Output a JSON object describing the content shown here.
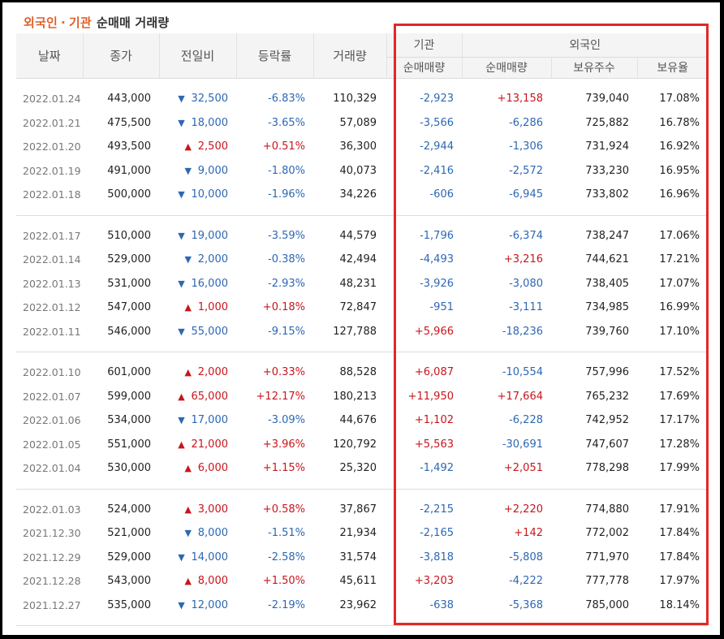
{
  "title": {
    "part1": "외국인",
    "separator": "·",
    "part2": "기관",
    "rest": "순매매 거래량"
  },
  "headers": {
    "date": "날짜",
    "close": "종가",
    "change": "전일비",
    "rate": "등락률",
    "volume": "거래량",
    "institution": "기관",
    "foreign": "외국인",
    "inst_net": "순매매량",
    "foreign_net": "순매매량",
    "foreign_shares": "보유주수",
    "foreign_ratio": "보유율"
  },
  "colors": {
    "up": "#c8151d",
    "down": "#2d67b4",
    "highlight_box": "#e32727",
    "title_accent": "#e0602a"
  },
  "groups": [
    [
      {
        "date": "2022.01.24",
        "close": "443,000",
        "dir": "down",
        "change": "32,500",
        "rate": "-6.83%",
        "volume": "110,329",
        "inst": "-2,923",
        "foreign": "+13,158",
        "shares": "739,040",
        "ratio": "17.08%"
      },
      {
        "date": "2022.01.21",
        "close": "475,500",
        "dir": "down",
        "change": "18,000",
        "rate": "-3.65%",
        "volume": "57,089",
        "inst": "-3,566",
        "foreign": "-6,286",
        "shares": "725,882",
        "ratio": "16.78%"
      },
      {
        "date": "2022.01.20",
        "close": "493,500",
        "dir": "up",
        "change": "2,500",
        "rate": "+0.51%",
        "volume": "36,300",
        "inst": "-2,944",
        "foreign": "-1,306",
        "shares": "731,924",
        "ratio": "16.92%"
      },
      {
        "date": "2022.01.19",
        "close": "491,000",
        "dir": "down",
        "change": "9,000",
        "rate": "-1.80%",
        "volume": "40,073",
        "inst": "-2,416",
        "foreign": "-2,572",
        "shares": "733,230",
        "ratio": "16.95%"
      },
      {
        "date": "2022.01.18",
        "close": "500,000",
        "dir": "down",
        "change": "10,000",
        "rate": "-1.96%",
        "volume": "34,226",
        "inst": "-606",
        "foreign": "-6,945",
        "shares": "733,802",
        "ratio": "16.96%"
      }
    ],
    [
      {
        "date": "2022.01.17",
        "close": "510,000",
        "dir": "down",
        "change": "19,000",
        "rate": "-3.59%",
        "volume": "44,579",
        "inst": "-1,796",
        "foreign": "-6,374",
        "shares": "738,247",
        "ratio": "17.06%"
      },
      {
        "date": "2022.01.14",
        "close": "529,000",
        "dir": "down",
        "change": "2,000",
        "rate": "-0.38%",
        "volume": "42,494",
        "inst": "-4,493",
        "foreign": "+3,216",
        "shares": "744,621",
        "ratio": "17.21%"
      },
      {
        "date": "2022.01.13",
        "close": "531,000",
        "dir": "down",
        "change": "16,000",
        "rate": "-2.93%",
        "volume": "48,231",
        "inst": "-3,926",
        "foreign": "-3,080",
        "shares": "738,405",
        "ratio": "17.07%"
      },
      {
        "date": "2022.01.12",
        "close": "547,000",
        "dir": "up",
        "change": "1,000",
        "rate": "+0.18%",
        "volume": "72,847",
        "inst": "-951",
        "foreign": "-3,111",
        "shares": "734,985",
        "ratio": "16.99%"
      },
      {
        "date": "2022.01.11",
        "close": "546,000",
        "dir": "down",
        "change": "55,000",
        "rate": "-9.15%",
        "volume": "127,788",
        "inst": "+5,966",
        "foreign": "-18,236",
        "shares": "739,760",
        "ratio": "17.10%"
      }
    ],
    [
      {
        "date": "2022.01.10",
        "close": "601,000",
        "dir": "up",
        "change": "2,000",
        "rate": "+0.33%",
        "volume": "88,528",
        "inst": "+6,087",
        "foreign": "-10,554",
        "shares": "757,996",
        "ratio": "17.52%"
      },
      {
        "date": "2022.01.07",
        "close": "599,000",
        "dir": "up",
        "change": "65,000",
        "rate": "+12.17%",
        "volume": "180,213",
        "inst": "+11,950",
        "foreign": "+17,664",
        "shares": "765,232",
        "ratio": "17.69%"
      },
      {
        "date": "2022.01.06",
        "close": "534,000",
        "dir": "down",
        "change": "17,000",
        "rate": "-3.09%",
        "volume": "44,676",
        "inst": "+1,102",
        "foreign": "-6,228",
        "shares": "742,952",
        "ratio": "17.17%"
      },
      {
        "date": "2022.01.05",
        "close": "551,000",
        "dir": "up",
        "change": "21,000",
        "rate": "+3.96%",
        "volume": "120,792",
        "inst": "+5,563",
        "foreign": "-30,691",
        "shares": "747,607",
        "ratio": "17.28%"
      },
      {
        "date": "2022.01.04",
        "close": "530,000",
        "dir": "up",
        "change": "6,000",
        "rate": "+1.15%",
        "volume": "25,320",
        "inst": "-1,492",
        "foreign": "+2,051",
        "shares": "778,298",
        "ratio": "17.99%"
      }
    ],
    [
      {
        "date": "2022.01.03",
        "close": "524,000",
        "dir": "up",
        "change": "3,000",
        "rate": "+0.58%",
        "volume": "37,867",
        "inst": "-2,215",
        "foreign": "+2,220",
        "shares": "774,880",
        "ratio": "17.91%"
      },
      {
        "date": "2021.12.30",
        "close": "521,000",
        "dir": "down",
        "change": "8,000",
        "rate": "-1.51%",
        "volume": "21,934",
        "inst": "-2,165",
        "foreign": "+142",
        "shares": "772,002",
        "ratio": "17.84%"
      },
      {
        "date": "2021.12.29",
        "close": "529,000",
        "dir": "down",
        "change": "14,000",
        "rate": "-2.58%",
        "volume": "31,574",
        "inst": "-3,818",
        "foreign": "-5,808",
        "shares": "771,970",
        "ratio": "17.84%"
      },
      {
        "date": "2021.12.28",
        "close": "543,000",
        "dir": "up",
        "change": "8,000",
        "rate": "+1.50%",
        "volume": "45,611",
        "inst": "+3,203",
        "foreign": "-4,222",
        "shares": "777,778",
        "ratio": "17.97%"
      },
      {
        "date": "2021.12.27",
        "close": "535,000",
        "dir": "down",
        "change": "12,000",
        "rate": "-2.19%",
        "volume": "23,962",
        "inst": "-638",
        "foreign": "-5,368",
        "shares": "785,000",
        "ratio": "18.14%"
      }
    ]
  ]
}
